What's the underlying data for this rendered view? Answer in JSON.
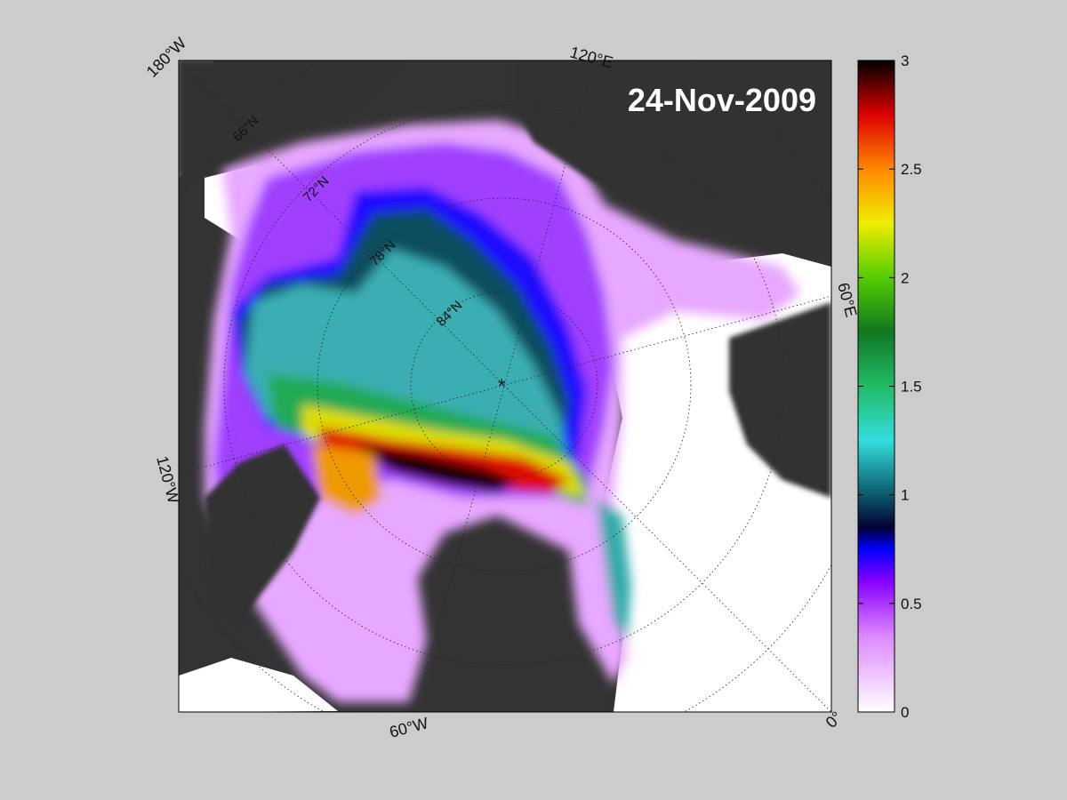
{
  "map": {
    "date": "24-Nov-2009",
    "longitude_labels": [
      {
        "text": "180°W"
      },
      {
        "text": "120°E"
      },
      {
        "text": "60°E"
      },
      {
        "text": "120°W"
      },
      {
        "text": "60°W"
      },
      {
        "text": "0°"
      }
    ],
    "latitude_labels": [
      "66°N",
      "72°N",
      "78°N",
      "84°N"
    ],
    "pole_marker": "*"
  },
  "colorbar": {
    "min": 0,
    "max": 3,
    "ticks": [
      "0",
      "0.5",
      "1",
      "1.5",
      "2",
      "2.5",
      "3"
    ],
    "tick_values": [
      0,
      0.5,
      1,
      1.5,
      2,
      2.5,
      3
    ],
    "stops": [
      {
        "value": 0.0,
        "color": "#ffffff"
      },
      {
        "value": 0.35,
        "color": "#dd88ff"
      },
      {
        "value": 0.6,
        "color": "#8800ff"
      },
      {
        "value": 0.75,
        "color": "#0000ff"
      },
      {
        "value": 0.85,
        "color": "#000033"
      },
      {
        "value": 1.0,
        "color": "#0a5a6a"
      },
      {
        "value": 1.25,
        "color": "#33dddd"
      },
      {
        "value": 1.5,
        "color": "#22bb66"
      },
      {
        "value": 1.75,
        "color": "#117722"
      },
      {
        "value": 2.0,
        "color": "#55cc00"
      },
      {
        "value": 2.25,
        "color": "#eeee00"
      },
      {
        "value": 2.5,
        "color": "#ff8800"
      },
      {
        "value": 2.75,
        "color": "#dd0000"
      },
      {
        "value": 3.0,
        "color": "#000000"
      }
    ]
  },
  "colors": {
    "land": "#333333",
    "land_unmasked": "#777777",
    "open_water": "#ffffff",
    "background": "#cccccc"
  }
}
